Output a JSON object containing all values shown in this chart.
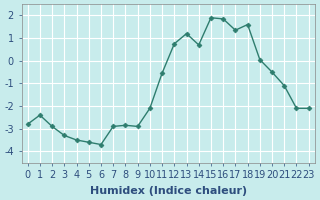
{
  "x": [
    0,
    1,
    2,
    3,
    4,
    5,
    6,
    7,
    8,
    9,
    10,
    11,
    12,
    13,
    14,
    15,
    16,
    17,
    18,
    19,
    20,
    21,
    22,
    23
  ],
  "y": [
    -2.8,
    -2.4,
    -2.9,
    -3.3,
    -3.5,
    -3.6,
    -3.7,
    -2.9,
    -2.85,
    -2.9,
    -2.1,
    -0.55,
    0.75,
    1.2,
    0.7,
    1.9,
    1.85,
    1.35,
    1.6,
    0.05,
    -0.5,
    -1.1,
    -2.1,
    -2.1
  ],
  "line_color": "#2e7d6e",
  "marker": "D",
  "marker_color": "#2e7d6e",
  "bg_color": "#c8ecec",
  "grid_color": "#ffffff",
  "xlabel": "Humidex (Indice chaleur)",
  "ylabel": "",
  "xlim": [
    -0.5,
    23.5
  ],
  "ylim": [
    -4.5,
    2.5
  ],
  "yticks": [
    -4,
    -3,
    -2,
    -1,
    0,
    1,
    2
  ],
  "xtick_labels": [
    "0",
    "1",
    "2",
    "3",
    "4",
    "5",
    "6",
    "7",
    "8",
    "9",
    "10",
    "11",
    "12",
    "13",
    "14",
    "15",
    "16",
    "17",
    "18",
    "19",
    "20",
    "21",
    "22",
    "23"
  ],
  "label_fontsize": 8,
  "tick_fontsize": 7
}
